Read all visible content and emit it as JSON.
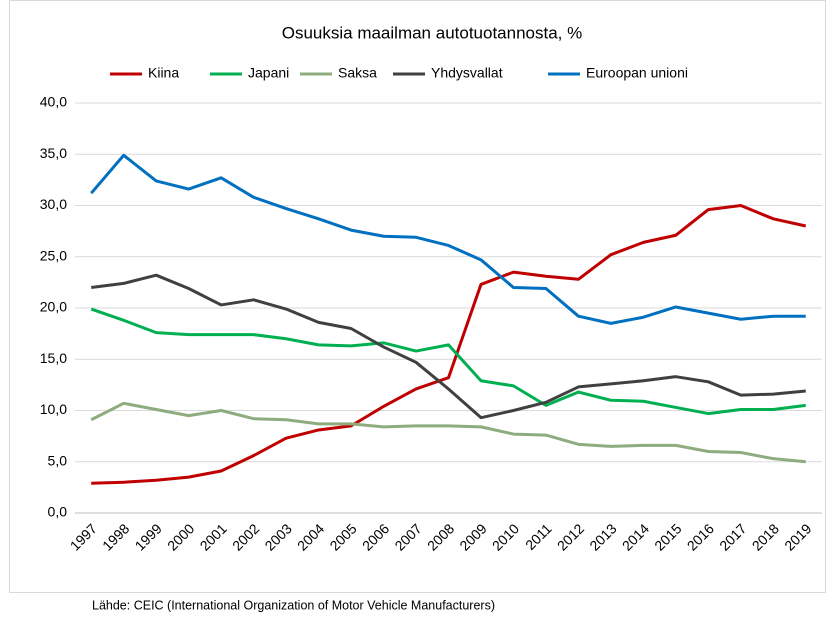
{
  "chart_data": {
    "type": "line",
    "title": "Osuuksia maailman autotuotannosta, %",
    "source": "Lähde: CEIC   (International Organization of Motor Vehicle Manufacturers)",
    "categories": [
      "1997",
      "1998",
      "1999",
      "2000",
      "2001",
      "2002",
      "2003",
      "2004",
      "2005",
      "2006",
      "2007",
      "2008",
      "2009",
      "2010",
      "2011",
      "2012",
      "2013",
      "2014",
      "2015",
      "2016",
      "2017",
      "2018",
      "2019"
    ],
    "series": [
      {
        "name": "Kiina",
        "color": "#c00000",
        "values": [
          2.9,
          3.0,
          3.2,
          3.5,
          4.1,
          5.6,
          7.3,
          8.1,
          8.5,
          10.4,
          12.1,
          13.2,
          22.3,
          23.5,
          23.1,
          22.8,
          25.2,
          26.4,
          27.1,
          29.6,
          30.0,
          28.7,
          28.0
        ]
      },
      {
        "name": "Japani",
        "color": "#00b050",
        "values": [
          19.9,
          18.8,
          17.6,
          17.4,
          17.4,
          17.4,
          17.0,
          16.4,
          16.3,
          16.6,
          15.8,
          16.4,
          12.9,
          12.4,
          10.5,
          11.8,
          11.0,
          10.9,
          10.3,
          9.7,
          10.1,
          10.1,
          10.5
        ]
      },
      {
        "name": "Saksa",
        "color": "#8fac7f",
        "values": [
          9.1,
          10.7,
          10.1,
          9.5,
          10.0,
          9.2,
          9.1,
          8.7,
          8.7,
          8.4,
          8.5,
          8.5,
          8.4,
          7.7,
          7.6,
          6.7,
          6.5,
          6.6,
          6.6,
          6.0,
          5.9,
          5.3,
          5.0
        ]
      },
      {
        "name": "Yhdysvallat",
        "color": "#404040",
        "values": [
          22.0,
          22.4,
          23.2,
          21.9,
          20.3,
          20.8,
          19.9,
          18.6,
          18.0,
          16.2,
          14.7,
          12.1,
          9.3,
          10.0,
          10.8,
          12.3,
          12.6,
          12.9,
          13.3,
          12.8,
          11.5,
          11.6,
          11.9
        ]
      },
      {
        "name": "Euroopan unioni",
        "color": "#0070c0",
        "values": [
          31.2,
          34.9,
          32.4,
          31.6,
          32.7,
          30.8,
          29.7,
          28.7,
          27.6,
          27.0,
          26.9,
          26.1,
          24.7,
          22.0,
          21.9,
          19.2,
          18.5,
          19.1,
          20.1,
          19.5,
          18.9,
          19.2,
          19.2
        ]
      }
    ],
    "ylim": [
      0,
      40
    ],
    "yticks": [
      {
        "value": 0,
        "label": "0,0"
      },
      {
        "value": 5,
        "label": "5,0"
      },
      {
        "value": 10,
        "label": "10,0"
      },
      {
        "value": 15,
        "label": "15,0"
      },
      {
        "value": 20,
        "label": "20,0"
      },
      {
        "value": 25,
        "label": "25,0"
      },
      {
        "value": 30,
        "label": "30,0"
      },
      {
        "value": 35,
        "label": "35,0"
      },
      {
        "value": 40,
        "label": "40,0"
      }
    ],
    "grid": true,
    "legend": "top"
  }
}
